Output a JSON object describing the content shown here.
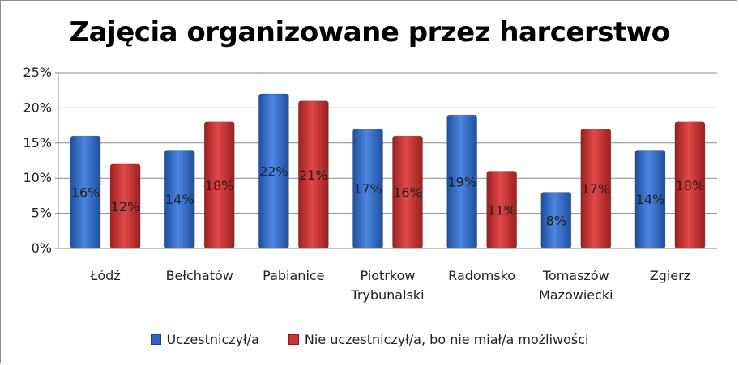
{
  "chart_data": {
    "type": "bar",
    "title": "Zajęcia organizowane przez harcerstwo",
    "categories": [
      "Łódź",
      "Bełchatów",
      "Pabianice",
      "Piotrkow\nTrybunalski",
      "Radomsko",
      "Tomaszów\nMazowiecki",
      "Zgierz"
    ],
    "series": [
      {
        "name": "Uczestniczył/a",
        "values": [
          16,
          14,
          22,
          17,
          19,
          8,
          14
        ],
        "labels": [
          "16%",
          "14%",
          "22%",
          "17%",
          "19%",
          "8%",
          "14%"
        ],
        "color": "#2f67c4"
      },
      {
        "name": "Nie uczestniczył/a, bo nie miał/a możliwości",
        "values": [
          12,
          18,
          21,
          16,
          11,
          17,
          18
        ],
        "labels": [
          "12%",
          "18%",
          "21%",
          "16%",
          "11%",
          "17%",
          "18%"
        ],
        "color": "#cc3232"
      }
    ],
    "yticks": [
      "0%",
      "5%",
      "10%",
      "15%",
      "20%",
      "25%"
    ],
    "ylim": [
      0,
      25
    ],
    "grid": true,
    "legend": "bottom"
  }
}
